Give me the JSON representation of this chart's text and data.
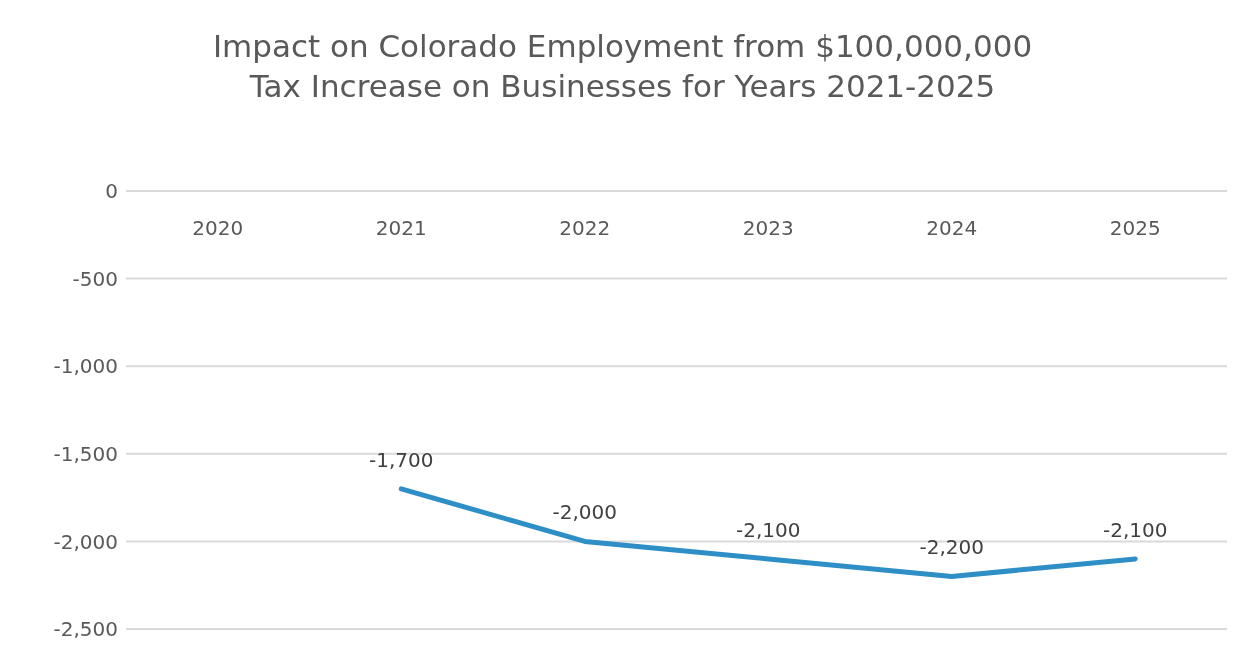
{
  "chart_data": {
    "type": "line",
    "title": "Impact on Colorado Employment from $100,000,000 Tax Increase on Businesses for Years 2021-2025",
    "categories": [
      "2020",
      "2021",
      "2022",
      "2023",
      "2024",
      "2025"
    ],
    "series": [
      {
        "color": "#2e8fc6",
        "values": [
          null,
          -1700,
          -2000,
          -2100,
          -2200,
          -2100
        ],
        "value_labels": [
          null,
          "-1,700",
          "-2,000",
          "-2,100",
          "-2,200",
          "-2,100"
        ]
      }
    ],
    "ylim": [
      -2500,
      0
    ],
    "yticks": [
      0,
      {
        "value": -500,
        "label": "-500"
      },
      {
        "value": -1000,
        "label": "-1,000"
      },
      {
        "value": -1500,
        "label": "-1,500"
      },
      {
        "value": -2000,
        "label": "-2,000"
      },
      {
        "value": -2500,
        "label": "-2,500"
      }
    ],
    "grid": "y",
    "legend": false
  }
}
